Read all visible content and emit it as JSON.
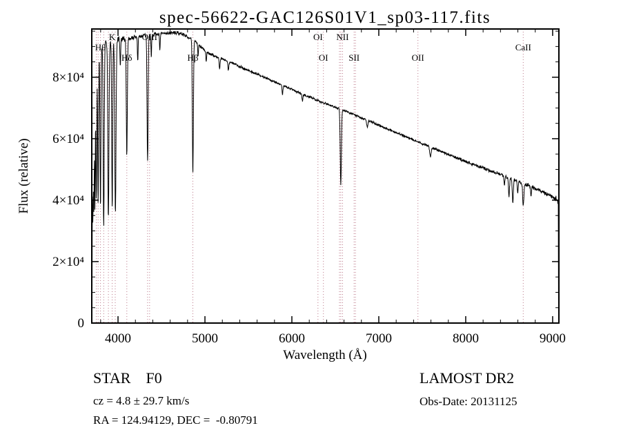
{
  "chart_data": {
    "type": "line",
    "title": "spec-56622-GAC126S01V1_sp03-117.fits",
    "xlabel": "Wavelength (Å)",
    "ylabel": "Flux (relative)",
    "xlim": [
      3698,
      9072
    ],
    "ylim": [
      0,
      95700
    ],
    "xticks": [
      4000,
      5000,
      6000,
      7000,
      8000,
      9000
    ],
    "xtick_labels": [
      "4000",
      "5000",
      "6000",
      "7000",
      "8000",
      "9000"
    ],
    "yticks": [
      0,
      20000,
      40000,
      60000,
      80000
    ],
    "ytick_labels": [
      "0",
      "2×10⁴",
      "4×10⁴",
      "6×10⁴",
      "8×10⁴"
    ],
    "x_minor_step": 200,
    "y_minor_step": 5000,
    "grid": false,
    "line_color": "#000000",
    "marker_color": "#bb7788",
    "line_markers": [
      {
        "wavelength": 3750,
        "label": ""
      },
      {
        "wavelength": 3771,
        "label": ""
      },
      {
        "wavelength": 3798,
        "label": "Hθ",
        "row": 2
      },
      {
        "wavelength": 3835,
        "label": ""
      },
      {
        "wavelength": 3889,
        "label": ""
      },
      {
        "wavelength": 3933,
        "label": "K",
        "row": 1
      },
      {
        "wavelength": 3968,
        "label": ""
      },
      {
        "wavelength": 4101,
        "label": "Hδ",
        "row": 3
      },
      {
        "wavelength": 4340,
        "label": ""
      },
      {
        "wavelength": 4363,
        "label": "OIII",
        "row": 1
      },
      {
        "wavelength": 4861,
        "label": "Hβ",
        "row": 3
      },
      {
        "wavelength": 6300,
        "label": "OI",
        "row": 1
      },
      {
        "wavelength": 6363,
        "label": "OI",
        "row": 3
      },
      {
        "wavelength": 6548,
        "label": ""
      },
      {
        "wavelength": 6563,
        "label": ""
      },
      {
        "wavelength": 6583,
        "label": "NII",
        "row": 1
      },
      {
        "wavelength": 6716,
        "label": "SII",
        "row": 3
      },
      {
        "wavelength": 6731,
        "label": ""
      },
      {
        "wavelength": 7450,
        "label": "OII",
        "row": 3
      },
      {
        "wavelength": 8662,
        "label": "CaII",
        "row": 2
      }
    ],
    "spectrum": {
      "sample_step": 3,
      "edge_drop": {
        "first": 900,
        "last": 700
      },
      "continuum": [
        [
          3698,
          85000
        ],
        [
          3760,
          89000
        ],
        [
          3850,
          91000
        ],
        [
          3950,
          92000
        ],
        [
          4100,
          92500
        ],
        [
          4300,
          93500
        ],
        [
          4500,
          94200
        ],
        [
          4650,
          94500
        ],
        [
          4750,
          94000
        ],
        [
          4900,
          91500
        ],
        [
          5000,
          88500
        ],
        [
          5100,
          87000
        ],
        [
          5300,
          84800
        ],
        [
          5500,
          82200
        ],
        [
          5700,
          79800
        ],
        [
          5900,
          77300
        ],
        [
          6100,
          74800
        ],
        [
          6300,
          72400
        ],
        [
          6500,
          70300
        ],
        [
          6700,
          68000
        ],
        [
          6900,
          65600
        ],
        [
          7100,
          63200
        ],
        [
          7300,
          60800
        ],
        [
          7500,
          58400
        ],
        [
          7700,
          56000
        ],
        [
          7900,
          53700
        ],
        [
          8100,
          51500
        ],
        [
          8300,
          49400
        ],
        [
          8500,
          47300
        ],
        [
          8700,
          45000
        ],
        [
          8900,
          42500
        ],
        [
          9000,
          41000
        ],
        [
          9072,
          39800
        ]
      ],
      "absorption_lines": [
        [
          3704,
          40000,
          4
        ],
        [
          3712,
          44000,
          4
        ],
        [
          3722,
          46000,
          4
        ],
        [
          3734,
          48000,
          4.5
        ],
        [
          3750,
          50000,
          5
        ],
        [
          3771,
          52000,
          5
        ],
        [
          3798,
          53000,
          5.5
        ],
        [
          3835,
          59000,
          6
        ],
        [
          3889,
          58000,
          6.5
        ],
        [
          3933,
          55000,
          5.5
        ],
        [
          3970,
          57000,
          7
        ],
        [
          4026,
          9000,
          4
        ],
        [
          4101,
          38000,
          6
        ],
        [
          4227,
          8000,
          4
        ],
        [
          4340,
          41000,
          6
        ],
        [
          4383,
          7000,
          4
        ],
        [
          4481,
          6000,
          4
        ],
        [
          4861,
          43500,
          6
        ],
        [
          4921,
          4000,
          4
        ],
        [
          5015,
          3500,
          4
        ],
        [
          5169,
          3800,
          5
        ],
        [
          5270,
          3000,
          5
        ],
        [
          5892,
          3200,
          5
        ],
        [
          6122,
          2200,
          5
        ],
        [
          6563,
          24500,
          6.5
        ],
        [
          6867,
          2200,
          7
        ],
        [
          7594,
          3000,
          8
        ],
        [
          8446,
          3000,
          5
        ],
        [
          8498,
          6000,
          6
        ],
        [
          8542,
          7500,
          6
        ],
        [
          8598,
          3500,
          5
        ],
        [
          8662,
          7000,
          7
        ],
        [
          8750,
          3200,
          5
        ]
      ],
      "noise_profile": [
        [
          3698,
          2600
        ],
        [
          3780,
          2100
        ],
        [
          3900,
          1500
        ],
        [
          4100,
          1000
        ],
        [
          4400,
          800
        ],
        [
          4800,
          650
        ],
        [
          5400,
          520
        ],
        [
          6000,
          470
        ],
        [
          6600,
          450
        ],
        [
          7200,
          480
        ],
        [
          7800,
          560
        ],
        [
          8300,
          650
        ],
        [
          8700,
          800
        ],
        [
          9000,
          1000
        ],
        [
          9072,
          1500
        ]
      ]
    }
  },
  "footer": {
    "class_line": "STAR    F0",
    "survey": "LAMOST DR2",
    "cz": "cz = 4.8 ± 29.7 km/s",
    "obs_date": "Obs-Date: 20131125",
    "ra_dec": "RA = 124.94129, DEC =  -0.80791"
  }
}
